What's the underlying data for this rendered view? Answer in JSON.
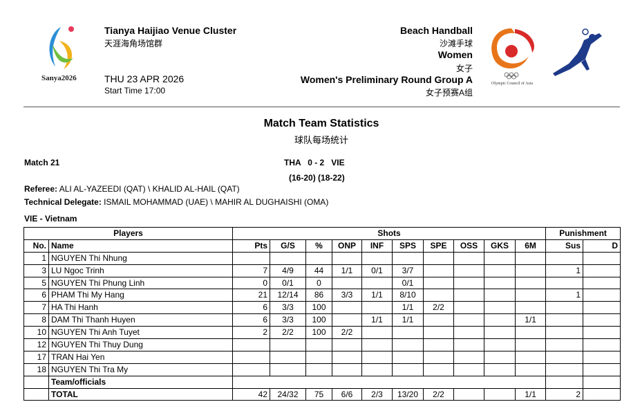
{
  "header": {
    "venue": "Tianya Haijiao Venue Cluster",
    "venue_cn": "天涯海角场馆群",
    "date": "THU 23 APR 2026",
    "start_time": "Start Time 17:00",
    "sport": "Beach Handball",
    "sport_cn": "沙滩手球",
    "gender": "Women",
    "gender_cn": "女子",
    "phase": "Women's Preliminary Round Group A",
    "phase_cn": "女子预赛A组",
    "games_logo_text": "Sanya2026",
    "oca_logo_text": "Olympic Council of Asia"
  },
  "report": {
    "title": "Match Team Statistics",
    "title_cn": "球队每场统计",
    "match": "Match 21",
    "score": "THA   0 - 2   VIE",
    "sets": "(16-20) (18-22)",
    "referee_label": "Referee:",
    "referee": "ALI AL-YAZEEDI (QAT) \\ KHALID AL-HAIL (QAT)",
    "td_label": "Technical Delegate:",
    "td": "ISMAIL MOHAMMAD (UAE) \\ MAHIR AL DUGHAISHI (OMA)",
    "team": "VIE - Vietnam"
  },
  "table": {
    "groups": [
      "Players",
      "Shots",
      "Punishment"
    ],
    "columns": [
      "No.",
      "Name",
      "Pts",
      "G/S",
      "%",
      "ONP",
      "INF",
      "SPS",
      "SPE",
      "OSS",
      "GKS",
      "6M",
      "Sus",
      "D"
    ],
    "rows": [
      [
        "1",
        "NGUYEN Thi Nhung",
        "",
        "",
        "",
        "",
        "",
        "",
        "",
        "",
        "",
        "",
        "",
        ""
      ],
      [
        "3",
        "LU Ngoc Trinh",
        "7",
        "4/9",
        "44",
        "1/1",
        "0/1",
        "3/7",
        "",
        "",
        "",
        "",
        "1",
        ""
      ],
      [
        "5",
        "NGUYEN Thi Phung Linh",
        "0",
        "0/1",
        "0",
        "",
        "",
        "0/1",
        "",
        "",
        "",
        "",
        "",
        ""
      ],
      [
        "6",
        "PHAM Thi My Hang",
        "21",
        "12/14",
        "86",
        "3/3",
        "1/1",
        "8/10",
        "",
        "",
        "",
        "",
        "1",
        ""
      ],
      [
        "7",
        "HA Thi Hanh",
        "6",
        "3/3",
        "100",
        "",
        "",
        "1/1",
        "2/2",
        "",
        "",
        "",
        "",
        ""
      ],
      [
        "8",
        "DAM Thi Thanh Huyen",
        "6",
        "3/3",
        "100",
        "",
        "1/1",
        "1/1",
        "",
        "",
        "",
        "1/1",
        "",
        ""
      ],
      [
        "10",
        "NGUYEN Thi Anh Tuyet",
        "2",
        "2/2",
        "100",
        "2/2",
        "",
        "",
        "",
        "",
        "",
        "",
        "",
        ""
      ],
      [
        "12",
        "NGUYEN Thi Thuy Dung",
        "",
        "",
        "",
        "",
        "",
        "",
        "",
        "",
        "",
        "",
        "",
        ""
      ],
      [
        "17",
        "TRAN Hai Yen",
        "",
        "",
        "",
        "",
        "",
        "",
        "",
        "",
        "",
        "",
        "",
        ""
      ],
      [
        "18",
        "NGUYEN Thi Tra My",
        "",
        "",
        "",
        "",
        "",
        "",
        "",
        "",
        "",
        "",
        "",
        ""
      ]
    ],
    "team_officials": "Team/officials",
    "total": [
      "",
      "TOTAL",
      "42",
      "24/32",
      "75",
      "6/6",
      "2/3",
      "13/20",
      "2/2",
      "",
      "",
      "1/1",
      "2",
      ""
    ]
  }
}
